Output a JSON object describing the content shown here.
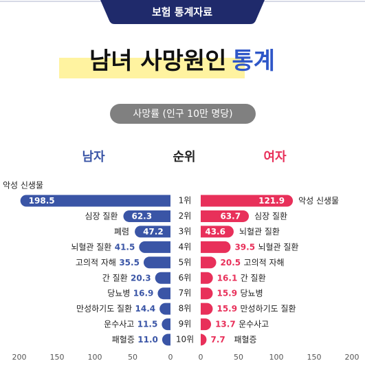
{
  "header": {
    "badge": "보험 통계자료",
    "title_main": "남녀 사망원인",
    "title_accent": "통계",
    "subtitle": "사망률 (인구 10만 명당)"
  },
  "chart_data": {
    "type": "butterfly",
    "category_label": "순위",
    "categories": [
      "1위",
      "2위",
      "3위",
      "4위",
      "5위",
      "6위",
      "7위",
      "8위",
      "9위",
      "10위"
    ],
    "series": [
      {
        "name": "남자",
        "color": "#3a55a6",
        "labels": [
          "악성 신생물",
          "심장 질환",
          "폐렴",
          "뇌혈관 질환",
          "고의적 자해",
          "간 질환",
          "당뇨병",
          "만성하기도 질환",
          "운수사고",
          "패혈증"
        ],
        "values": [
          198.5,
          62.3,
          47.2,
          41.5,
          35.5,
          20.3,
          16.9,
          14.4,
          11.5,
          11
        ],
        "value_labels": [
          "198.5",
          "62.3",
          "47.2",
          "41.5",
          "35.5",
          "20.3",
          "16.9",
          "14.4",
          "11.5",
          "11.0"
        ]
      },
      {
        "name": "여자",
        "color": "#e8305a",
        "labels": [
          "악성 신생물",
          "심장 질환",
          "뇌혈관 질환",
          "뇌혈관 질환",
          "고의적 자해",
          "간 질환",
          "당뇨병",
          "만성하기도 질환",
          "운수사고",
          "패혈증"
        ],
        "values": [
          121.9,
          63.7,
          43.6,
          39.5,
          20.5,
          16.1,
          15.9,
          15.9,
          13.7,
          7.7
        ],
        "value_labels": [
          "121.9",
          "63.7",
          "43.6",
          "39.5",
          "20.5",
          "16.1",
          "15.9",
          "15.9",
          "13.7",
          "7.7"
        ]
      }
    ],
    "xlim": [
      0,
      200
    ],
    "xticks": [
      0,
      50,
      100,
      150,
      200
    ]
  }
}
